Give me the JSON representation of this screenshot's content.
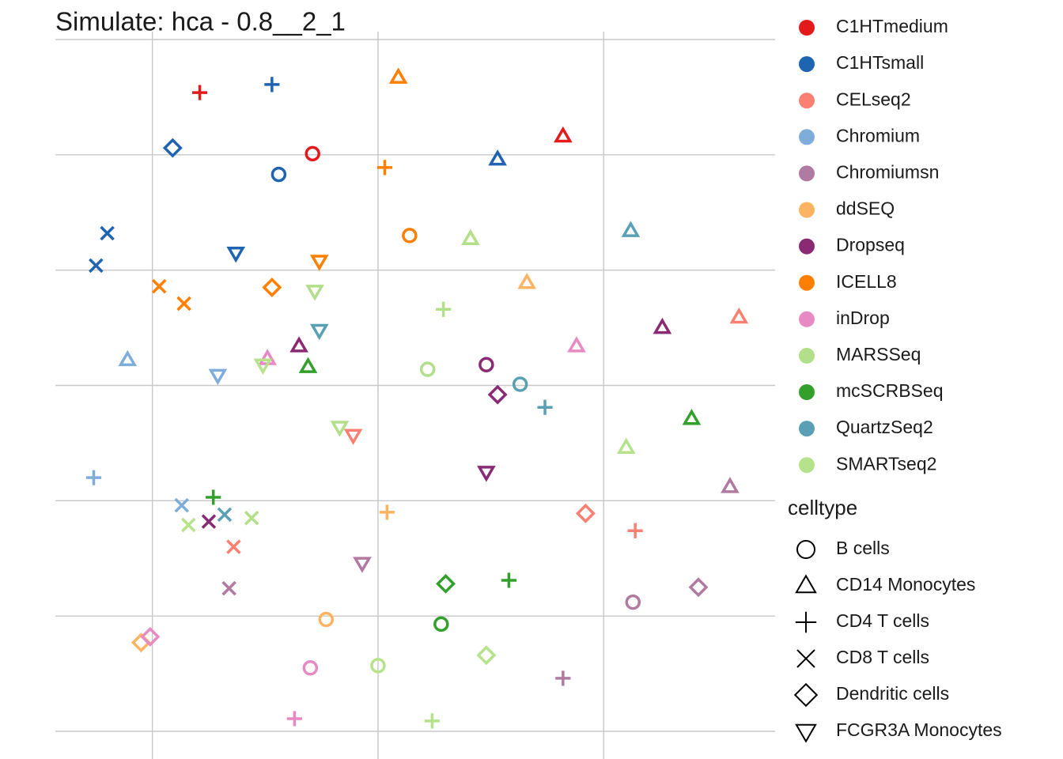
{
  "chart_data": {
    "type": "scatter",
    "title": "Simulate: hca - 0.8__2_1",
    "xlim": [
      -14.3,
      17.6
    ],
    "ylim": [
      -30,
      30
    ],
    "xticks": [
      -10,
      0,
      10
    ],
    "yticks": [
      -30,
      -20,
      -10,
      0,
      10,
      20,
      30
    ],
    "grid": true,
    "series": [
      {
        "name": "C1HTmedium",
        "color": "#e31a1c",
        "x": [
          -7.9,
          -2.9,
          8.2
        ],
        "y": [
          25.4,
          20.1,
          21.6
        ],
        "celltypes": [
          "CD4 T cells",
          "B cells",
          "CD14 Monocytes"
        ]
      },
      {
        "name": "C1HTsmall",
        "color": "#1f64b0",
        "x": [
          -4.7,
          -9.1,
          -4.4,
          5.3,
          -12.0,
          -12.5,
          -6.3
        ],
        "y": [
          26.1,
          20.6,
          18.3,
          19.6,
          13.2,
          10.4,
          11.5
        ],
        "celltypes": [
          "CD4 T cells",
          "Dendritic cells",
          "B cells",
          "CD14 Monocytes",
          "CD8 T cells",
          "CD8 T cells",
          "FCGR3A Monocytes"
        ]
      },
      {
        "name": "CELseq2",
        "color": "#fb8072",
        "x": [
          16.0,
          -1.1,
          9.2,
          11.4,
          -6.4
        ],
        "y": [
          5.9,
          -4.3,
          -11.1,
          -12.6,
          -14.0
        ],
        "celltypes": [
          "CD14 Monocytes",
          "FCGR3A Monocytes",
          "Dendritic cells",
          "CD4 T cells",
          "CD8 T cells"
        ]
      },
      {
        "name": "Chromium",
        "color": "#7eadd9",
        "x": [
          -11.1,
          -12.6,
          -8.7,
          -7.1
        ],
        "y": [
          2.2,
          -8.0,
          -10.4,
          0.9
        ],
        "celltypes": [
          "CD14 Monocytes",
          "CD4 T cells",
          "CD8 T cells",
          "FCGR3A Monocytes"
        ]
      },
      {
        "name": "Chromiumsn",
        "color": "#b07aa1",
        "x": [
          15.6,
          -0.7,
          -6.6,
          11.3,
          14.2,
          8.2
        ],
        "y": [
          -8.8,
          -15.4,
          -17.6,
          -18.8,
          -17.5,
          -25.4
        ],
        "celltypes": [
          "CD14 Monocytes",
          "FCGR3A Monocytes",
          "CD8 T cells",
          "B cells",
          "Dendritic cells",
          "CD4 T cells"
        ]
      },
      {
        "name": "ddSEQ",
        "color": "#fdb462",
        "x": [
          6.6,
          0.4,
          -2.3,
          -10.5
        ],
        "y": [
          8.9,
          -11.0,
          -20.3,
          -22.3
        ],
        "celltypes": [
          "CD14 Monocytes",
          "CD4 T cells",
          "B cells",
          "Dendritic cells"
        ]
      },
      {
        "name": "Dropseq",
        "color": "#8a2a74",
        "x": [
          12.6,
          4.8,
          5.3,
          4.8,
          -7.5,
          -3.5
        ],
        "y": [
          5.0,
          1.8,
          -0.8,
          -7.5,
          -11.8,
          3.4
        ],
        "celltypes": [
          "CD14 Monocytes",
          "B cells",
          "Dendritic cells",
          "FCGR3A Monocytes",
          "CD8 T cells",
          "CD14 Monocytes"
        ]
      },
      {
        "name": "ICELL8",
        "color": "#ff7f00",
        "x": [
          0.9,
          0.3,
          1.4,
          -2.6,
          -9.7,
          -8.6,
          -4.7
        ],
        "y": [
          26.7,
          18.9,
          13.0,
          10.8,
          8.6,
          7.1,
          8.5
        ],
        "celltypes": [
          "CD14 Monocytes",
          "CD4 T cells",
          "B cells",
          "FCGR3A Monocytes",
          "CD8 T cells",
          "CD8 T cells",
          "Dendritic cells"
        ]
      },
      {
        "name": "inDrop",
        "color": "#e78ac3",
        "x": [
          8.8,
          -4.9,
          -3.0,
          -10.1,
          -3.7
        ],
        "y": [
          3.4,
          2.3,
          -24.5,
          -21.8,
          -28.9
        ],
        "celltypes": [
          "CD14 Monocytes",
          "CD14 Monocytes",
          "B cells",
          "Dendritic cells",
          "CD4 T cells"
        ]
      },
      {
        "name": "MARSSeq",
        "color": "#b2df8a",
        "x": [
          4.1,
          2.9,
          2.2,
          -1.7,
          -2.8,
          -5.6
        ],
        "y": [
          12.7,
          6.6,
          1.4,
          -3.6,
          8.2,
          -11.5
        ],
        "celltypes": [
          "CD14 Monocytes",
          "CD4 T cells",
          "B cells",
          "FCGR3A Monocytes",
          "FCGR3A Monocytes",
          "CD8 T cells"
        ]
      },
      {
        "name": "mcSCRBSeq",
        "color": "#33a02c",
        "x": [
          13.9,
          -3.1,
          3.0,
          5.8,
          2.8,
          -7.3
        ],
        "y": [
          -2.9,
          1.6,
          -17.2,
          -16.9,
          -20.7,
          -9.7
        ],
        "celltypes": [
          "CD14 Monocytes",
          "CD14 Monocytes",
          "Dendritic cells",
          "CD4 T cells",
          "B cells",
          "CD4 T cells"
        ]
      },
      {
        "name": "QuartzSeq2",
        "color": "#5aa0b5",
        "x": [
          11.2,
          -2.6,
          6.3,
          7.4,
          -6.8
        ],
        "y": [
          13.4,
          4.8,
          0.1,
          -1.9,
          -11.2
        ],
        "celltypes": [
          "CD14 Monocytes",
          "FCGR3A Monocytes",
          "B cells",
          "CD4 T cells",
          "CD8 T cells"
        ]
      },
      {
        "name": "SMARTseq2",
        "color": "#b6e28c",
        "x": [
          11.0,
          0.0,
          4.8,
          2.4,
          -8.4,
          -5.1
        ],
        "y": [
          -5.4,
          -24.3,
          -23.4,
          -29.1,
          -12.1,
          1.8
        ],
        "celltypes": [
          "CD14 Monocytes",
          "B cells",
          "Dendritic cells",
          "CD4 T cells",
          "CD8 T cells",
          "FCGR3A Monocytes"
        ]
      }
    ],
    "shape_legend": {
      "title": "celltype",
      "items": [
        "B cells",
        "CD14 Monocytes",
        "CD4 T cells",
        "CD8 T cells",
        "Dendritic cells",
        "FCGR3A Monocytes"
      ]
    }
  }
}
